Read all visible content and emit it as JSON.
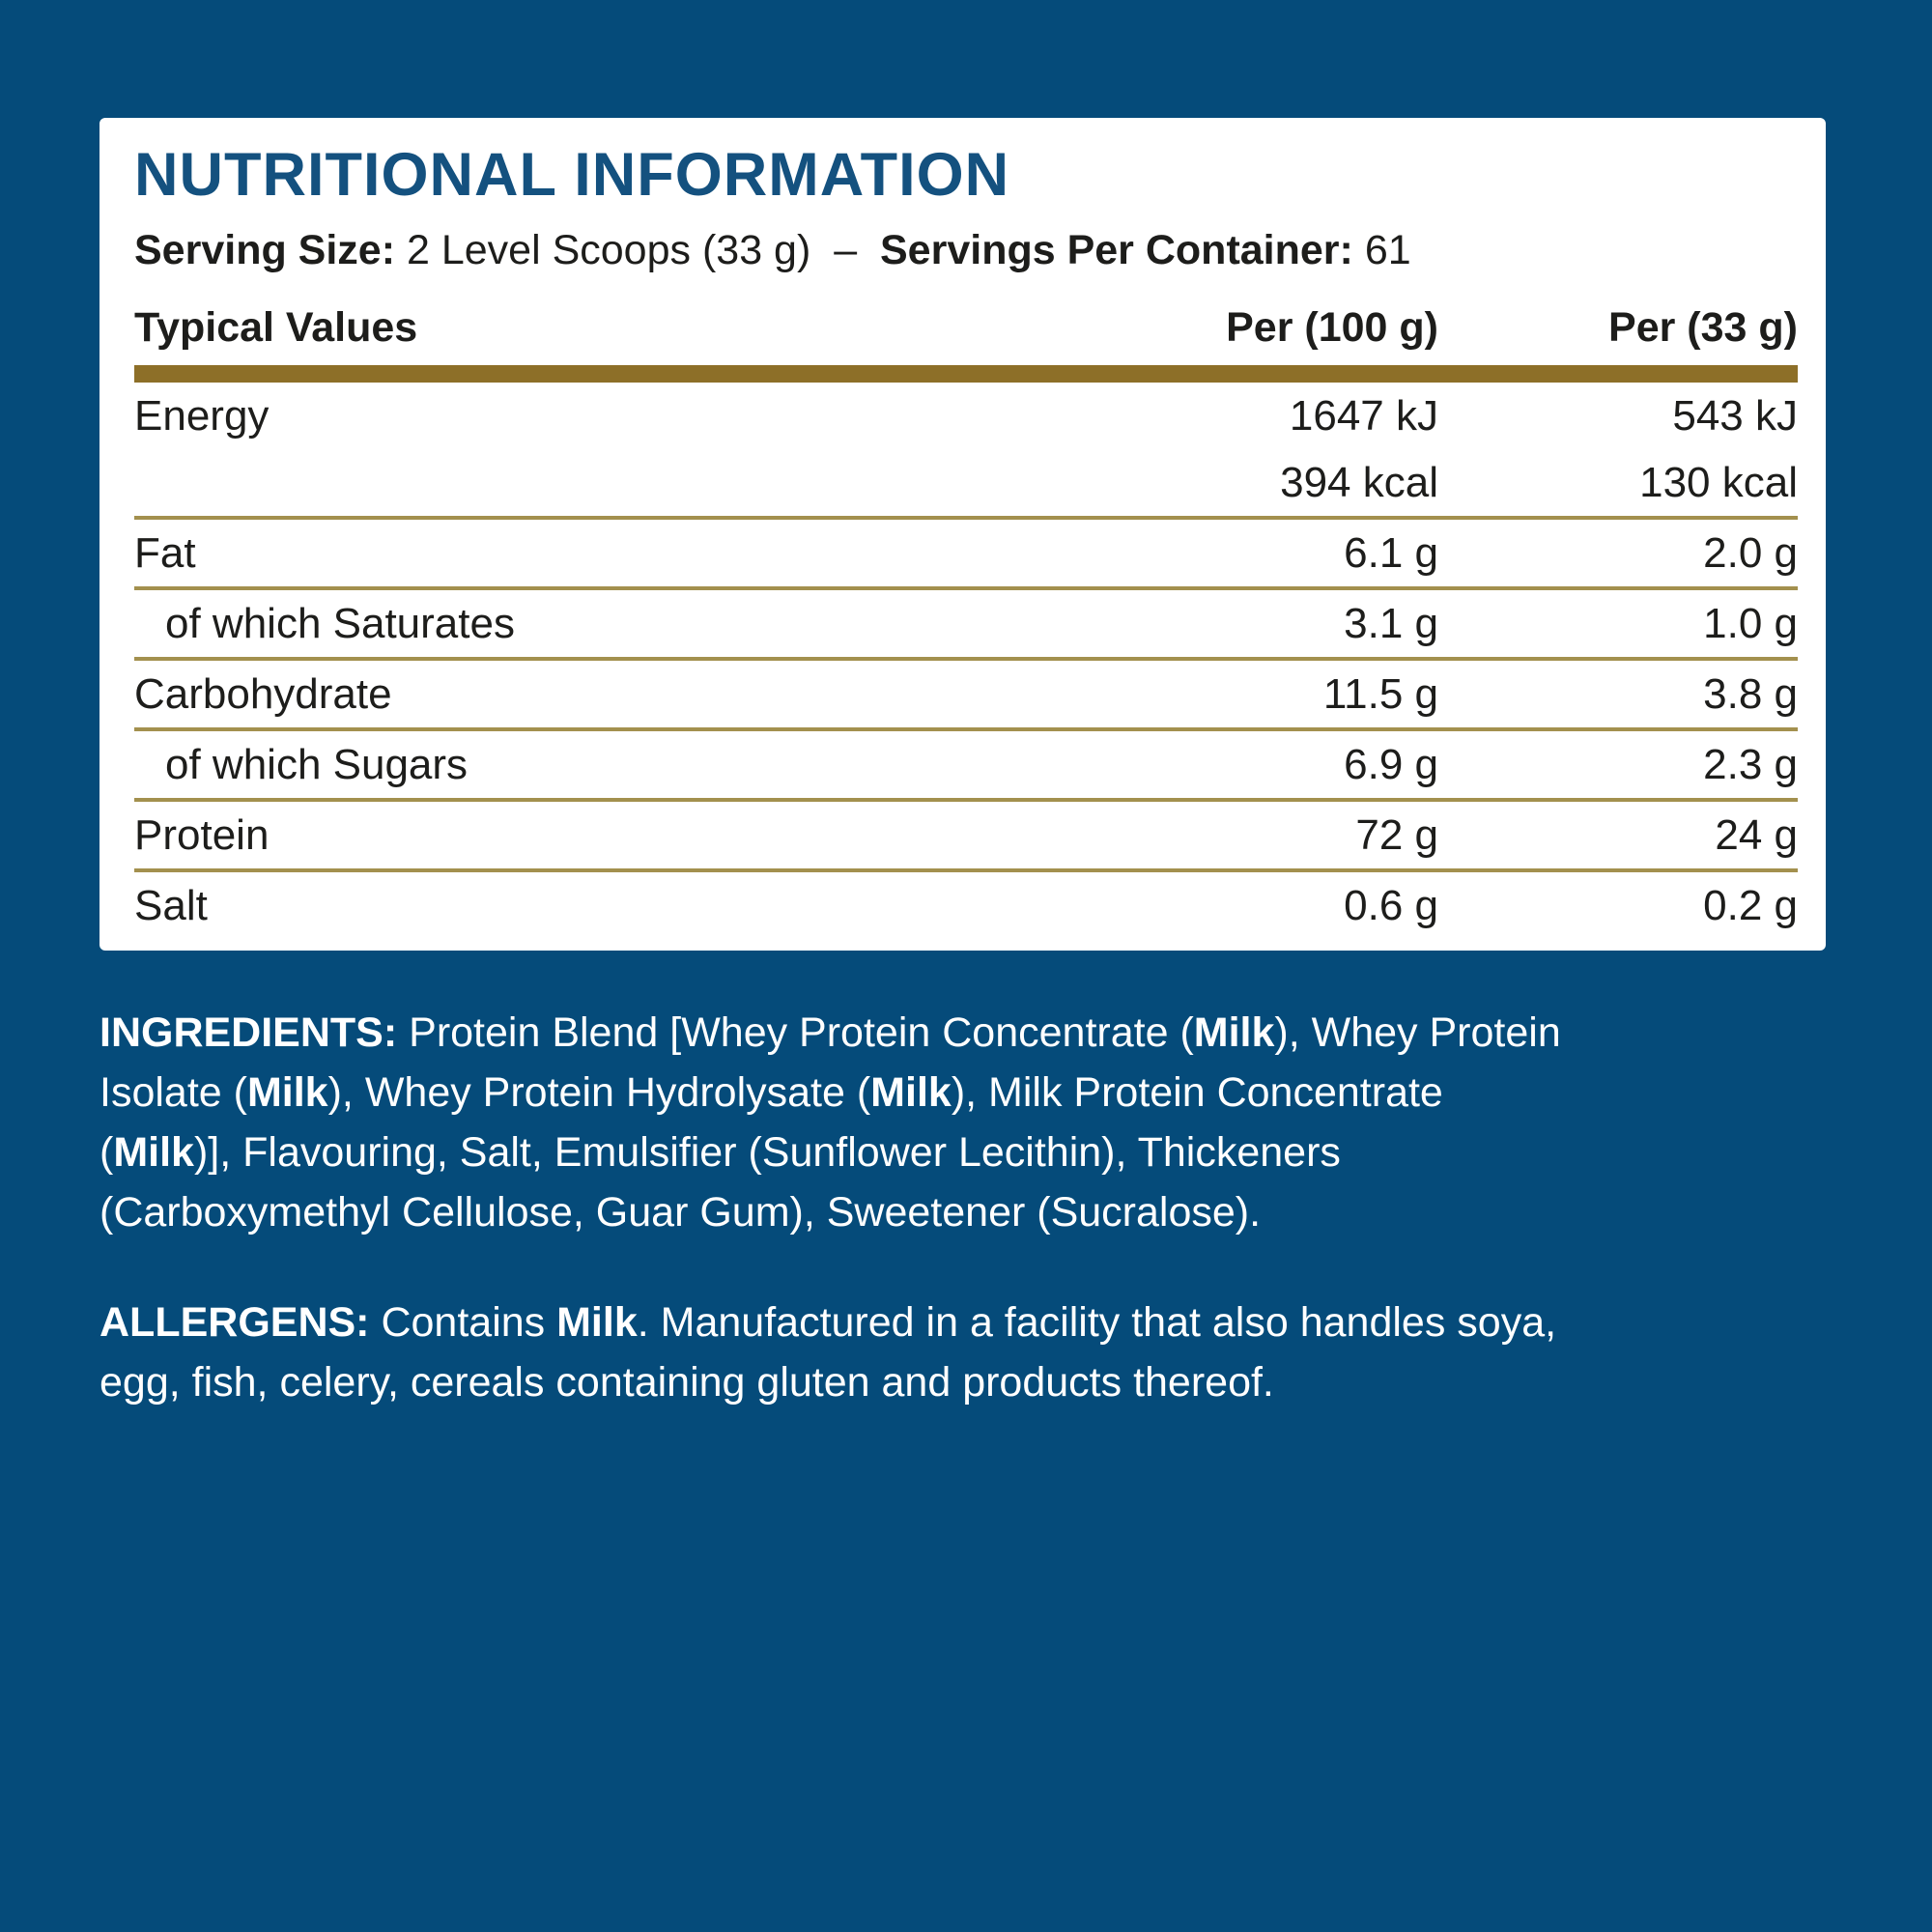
{
  "colors": {
    "background": "#054B7A",
    "card": "#FFFFFF",
    "heading_blue": "#14517F",
    "gold_bar": "#8D6F28",
    "row_rule": "#A3904E",
    "table_text": "#1D1D1B",
    "paragraph_text": "#FFFFFF"
  },
  "panel": {
    "title": "NUTRITIONAL INFORMATION",
    "serving_line": {
      "segments": [
        {
          "text": "Serving Size: ",
          "bold": true
        },
        {
          "text": "2 Level Scoops (33 g)",
          "bold": false
        },
        {
          "text": "  –  ",
          "bold": false
        },
        {
          "text": "Servings Per Container: ",
          "bold": true
        },
        {
          "text": "61",
          "bold": false
        }
      ]
    },
    "table": {
      "header": {
        "col_label": "Typical Values",
        "col_per100": "Per (100 g)",
        "col_per33": "Per (33 g)"
      },
      "rows": [
        {
          "label": "Energy",
          "indent": false,
          "per100": "1647 kJ",
          "per33": "543 kJ",
          "rule_before": false
        },
        {
          "label": "",
          "indent": false,
          "per100": "394 kcal",
          "per33": "130 kcal",
          "rule_before": false
        },
        {
          "label": "Fat",
          "indent": false,
          "per100": "6.1 g",
          "per33": "2.0 g",
          "rule_before": true
        },
        {
          "label": "of which Saturates",
          "indent": true,
          "per100": "3.1 g",
          "per33": "1.0 g",
          "rule_before": true
        },
        {
          "label": "Carbohydrate",
          "indent": false,
          "per100": "11.5 g",
          "per33": "3.8 g",
          "rule_before": true
        },
        {
          "label": "of which Sugars",
          "indent": true,
          "per100": "6.9 g",
          "per33": "2.3 g",
          "rule_before": true
        },
        {
          "label": "Protein",
          "indent": false,
          "per100": "72 g",
          "per33": "24 g",
          "rule_before": true
        },
        {
          "label": "Salt",
          "indent": false,
          "per100": "0.6 g",
          "per33": "0.2 g",
          "rule_before": true
        }
      ]
    }
  },
  "ingredients": {
    "lines": [
      [
        {
          "text": "INGREDIENTS:",
          "bold": true
        },
        {
          "text": " Protein Blend [Whey Protein Concentrate (",
          "bold": false
        },
        {
          "text": "Milk",
          "bold": true
        },
        {
          "text": "), Whey Protein",
          "bold": false
        }
      ],
      [
        {
          "text": "Isolate (",
          "bold": false
        },
        {
          "text": "Milk",
          "bold": true
        },
        {
          "text": "), Whey Protein Hydrolysate (",
          "bold": false
        },
        {
          "text": "Milk",
          "bold": true
        },
        {
          "text": "), Milk Protein Concentrate",
          "bold": false
        }
      ],
      [
        {
          "text": "(",
          "bold": false
        },
        {
          "text": "Milk",
          "bold": true
        },
        {
          "text": ")], Flavouring, Salt, Emulsifier (Sunflower Lecithin), Thickeners",
          "bold": false
        }
      ],
      [
        {
          "text": "(Carboxymethyl Cellulose, Guar Gum), Sweetener (Sucralose).",
          "bold": false
        }
      ]
    ]
  },
  "allergens": {
    "lines": [
      [
        {
          "text": "ALLERGENS:",
          "bold": true
        },
        {
          "text": " Contains ",
          "bold": false
        },
        {
          "text": "Milk",
          "bold": true
        },
        {
          "text": ". Manufactured in a facility that also handles soya,",
          "bold": false
        }
      ],
      [
        {
          "text": "egg, fish, celery, cereals containing gluten and products thereof.",
          "bold": false
        }
      ]
    ]
  }
}
